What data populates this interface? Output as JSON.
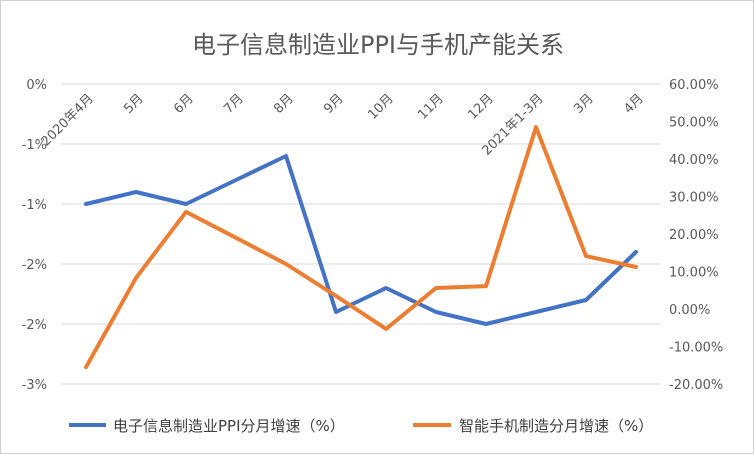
{
  "chart_data": {
    "type": "line",
    "title": "电子信息制造业PPI与手机产能关系",
    "categories": [
      "2020年4月",
      "5月",
      "6月",
      "7月",
      "8月",
      "9月",
      "10月",
      "11月",
      "12月",
      "2021年1-3月",
      "3月",
      "4月"
    ],
    "y_left": {
      "ticks": [
        0,
        -0.5,
        -1,
        -1.5,
        -2,
        -2.5
      ],
      "tick_labels": [
        "0%",
        "-1%",
        "-1%",
        "-2%",
        "-2%",
        "-3%"
      ],
      "ylim": [
        -2.5,
        0
      ]
    },
    "y_right": {
      "ticks": [
        60,
        50,
        40,
        30,
        20,
        10,
        0,
        -10,
        -20
      ],
      "tick_labels": [
        "60.00%",
        "50.00%",
        "40.00%",
        "30.00%",
        "20.00%",
        "10.00%",
        "0.00%",
        "-10.00%",
        "-20.00%"
      ],
      "ylim": [
        -20,
        60
      ]
    },
    "grid": true,
    "legend_position": "bottom",
    "series": [
      {
        "name": "电子信息制造业PPI分月增速（%）",
        "axis": "left",
        "color": "#4472C4",
        "values": [
          -1.0,
          -0.9,
          -1.0,
          -0.8,
          -0.6,
          -1.9,
          -1.7,
          -1.9,
          -2.0,
          -1.9,
          -1.8,
          -1.4
        ]
      },
      {
        "name": "智能手机制造分月增速（%）",
        "axis": "right",
        "color": "#ED7D31",
        "values": [
          -15.5,
          8.3,
          25.9,
          19.0,
          12.0,
          3.5,
          -5.3,
          5.6,
          6.1,
          48.5,
          14.1,
          11.2
        ]
      }
    ]
  }
}
